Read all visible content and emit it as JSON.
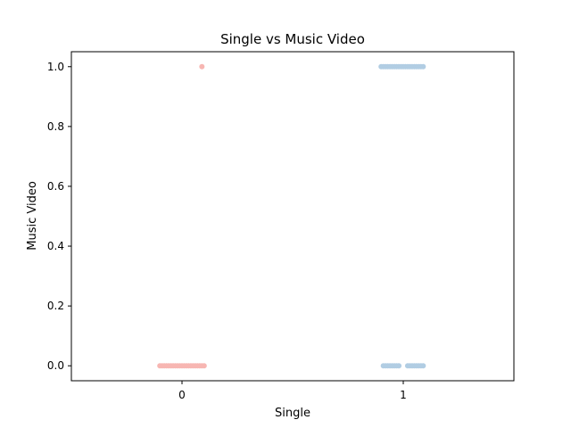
{
  "chart_data": {
    "type": "scatter",
    "subtype": "strip",
    "title": "Single vs Music Video",
    "xlabel": "Single",
    "ylabel": "Music Video",
    "categories": [
      "0",
      "1"
    ],
    "yticks": [
      "0.0",
      "0.2",
      "0.4",
      "0.6",
      "0.8",
      "1.0"
    ],
    "ylim": [
      -0.05,
      1.05
    ],
    "grid": false,
    "legend": "none",
    "series": [
      {
        "category": "0",
        "color": "#f7b6b2",
        "points": [
          {
            "x": -0.1,
            "y": 0.0
          },
          {
            "x": -0.09,
            "y": 0.0
          },
          {
            "x": -0.08,
            "y": 0.0
          },
          {
            "x": -0.07,
            "y": 0.0
          },
          {
            "x": -0.06,
            "y": 0.0
          },
          {
            "x": -0.05,
            "y": 0.0
          },
          {
            "x": -0.04,
            "y": 0.0
          },
          {
            "x": -0.03,
            "y": 0.0
          },
          {
            "x": -0.02,
            "y": 0.0
          },
          {
            "x": -0.01,
            "y": 0.0
          },
          {
            "x": 0.0,
            "y": 0.0
          },
          {
            "x": 0.01,
            "y": 0.0
          },
          {
            "x": 0.02,
            "y": 0.0
          },
          {
            "x": 0.03,
            "y": 0.0
          },
          {
            "x": 0.04,
            "y": 0.0
          },
          {
            "x": 0.05,
            "y": 0.0
          },
          {
            "x": 0.06,
            "y": 0.0
          },
          {
            "x": 0.07,
            "y": 0.0
          },
          {
            "x": 0.08,
            "y": 0.0
          },
          {
            "x": 0.09,
            "y": 0.0
          },
          {
            "x": 0.1,
            "y": 0.0
          },
          {
            "x": 0.09,
            "y": 1.0
          }
        ]
      },
      {
        "category": "1",
        "color": "#b1cde3",
        "points": [
          {
            "x": 0.9,
            "y": 1.0
          },
          {
            "x": 0.91,
            "y": 1.0
          },
          {
            "x": 0.92,
            "y": 1.0
          },
          {
            "x": 0.93,
            "y": 1.0
          },
          {
            "x": 0.94,
            "y": 1.0
          },
          {
            "x": 0.95,
            "y": 1.0
          },
          {
            "x": 0.96,
            "y": 1.0
          },
          {
            "x": 0.97,
            "y": 1.0
          },
          {
            "x": 0.98,
            "y": 1.0
          },
          {
            "x": 0.99,
            "y": 1.0
          },
          {
            "x": 1.0,
            "y": 1.0
          },
          {
            "x": 1.01,
            "y": 1.0
          },
          {
            "x": 1.02,
            "y": 1.0
          },
          {
            "x": 1.03,
            "y": 1.0
          },
          {
            "x": 1.04,
            "y": 1.0
          },
          {
            "x": 1.05,
            "y": 1.0
          },
          {
            "x": 1.06,
            "y": 1.0
          },
          {
            "x": 1.07,
            "y": 1.0
          },
          {
            "x": 1.08,
            "y": 1.0
          },
          {
            "x": 1.09,
            "y": 1.0
          },
          {
            "x": 0.91,
            "y": 0.0
          },
          {
            "x": 0.92,
            "y": 0.0
          },
          {
            "x": 0.93,
            "y": 0.0
          },
          {
            "x": 0.94,
            "y": 0.0
          },
          {
            "x": 0.95,
            "y": 0.0
          },
          {
            "x": 0.96,
            "y": 0.0
          },
          {
            "x": 0.97,
            "y": 0.0
          },
          {
            "x": 0.98,
            "y": 0.0
          },
          {
            "x": 1.02,
            "y": 0.0
          },
          {
            "x": 1.03,
            "y": 0.0
          },
          {
            "x": 1.04,
            "y": 0.0
          },
          {
            "x": 1.05,
            "y": 0.0
          },
          {
            "x": 1.06,
            "y": 0.0
          },
          {
            "x": 1.07,
            "y": 0.0
          },
          {
            "x": 1.08,
            "y": 0.0
          },
          {
            "x": 1.09,
            "y": 0.0
          }
        ]
      }
    ]
  }
}
